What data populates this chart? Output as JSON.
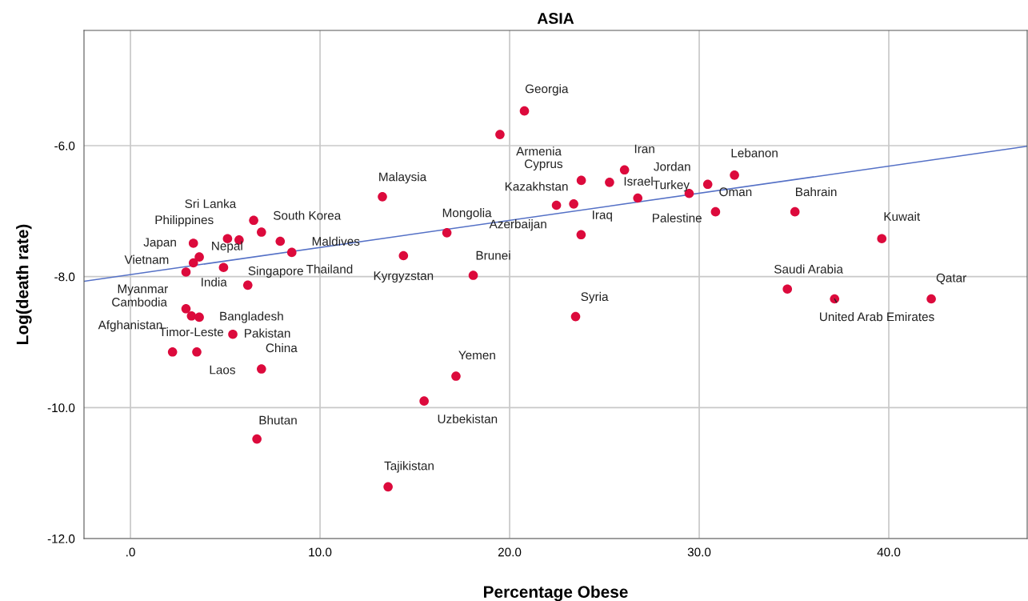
{
  "chart_data": {
    "type": "scatter",
    "title": "ASIA",
    "xlabel": "Percentage Obese",
    "ylabel": "Log(death rate)",
    "xlim": [
      -2.45,
      47.3
    ],
    "ylim": [
      -12.0,
      -4.24
    ],
    "xticks": [
      {
        "value": 0,
        "label": ".0"
      },
      {
        "value": 10,
        "label": "10.0"
      },
      {
        "value": 20,
        "label": "20.0"
      },
      {
        "value": 30,
        "label": "30.0"
      },
      {
        "value": 40,
        "label": "40.0"
      }
    ],
    "yticks": [
      {
        "value": -12,
        "label": "-12.0"
      },
      {
        "value": -10,
        "label": "-10.0"
      },
      {
        "value": -8,
        "label": "-8.0"
      },
      {
        "value": -6,
        "label": "-6.0"
      }
    ],
    "grid": true,
    "legend": false,
    "series": [
      {
        "marker": "circle",
        "color": "#dc0a3c",
        "x": [
          20.78,
          19.49,
          26.06,
          23.78,
          25.27,
          31.86,
          30.45,
          29.47,
          26.76,
          30.86,
          35.05,
          13.29,
          22.47,
          23.38,
          16.69,
          23.77,
          14.4,
          18.08,
          23.48,
          34.65,
          39.63,
          37.14,
          42.24,
          5.73,
          5.12,
          6.5,
          6.91,
          3.32,
          3.63,
          3.32,
          2.93,
          6.19,
          4.91,
          7.9,
          8.51,
          2.93,
          3.22,
          3.63,
          5.4,
          2.22,
          3.5,
          6.91,
          17.17,
          15.49,
          6.67,
          13.59
        ],
        "values": [
          -5.47,
          -5.83,
          -6.37,
          -6.53,
          -6.56,
          -6.45,
          -6.59,
          -6.73,
          -6.8,
          -7.01,
          -7.01,
          -6.78,
          -6.91,
          -6.89,
          -7.33,
          -7.36,
          -7.68,
          -7.98,
          -8.61,
          -8.19,
          -7.42,
          -8.34,
          -8.34,
          -7.44,
          -7.42,
          -7.14,
          -7.32,
          -7.49,
          -7.7,
          -7.79,
          -7.93,
          -8.13,
          -7.86,
          -7.46,
          -7.63,
          -8.49,
          -8.6,
          -8.62,
          -8.88,
          -9.15,
          -9.15,
          -9.41,
          -9.52,
          -9.9,
          -10.48,
          -11.21
        ]
      },
      {
        "type": "line",
        "color": "#5470c6",
        "x": [
          -2.45,
          47.3
        ],
        "values": [
          -8.07,
          -6.01
        ]
      }
    ],
    "annotations": [
      {
        "text": "Georgia",
        "x": 20.78,
        "y": -5.47
      },
      {
        "text": "Armenia",
        "x": 19.49,
        "y": -5.83
      },
      {
        "text": "Iran",
        "x": 26.06,
        "y": -6.37
      },
      {
        "text": "Cyprus",
        "x": 23.78,
        "y": -6.53
      },
      {
        "text": "Israel",
        "x": 25.27,
        "y": -6.56
      },
      {
        "text": "Lebanon",
        "x": 31.86,
        "y": -6.45
      },
      {
        "text": "Jordan",
        "x": 30.45,
        "y": -6.59
      },
      {
        "text": "Palestine",
        "x": 29.47,
        "y": -6.73
      },
      {
        "text": "Turkey",
        "x": 26.76,
        "y": -6.8
      },
      {
        "text": "Oman",
        "x": 30.86,
        "y": -7.01
      },
      {
        "text": "Bahrain",
        "x": 35.05,
        "y": -7.01
      },
      {
        "text": "Malaysia",
        "x": 13.29,
        "y": -6.78
      },
      {
        "text": "Kazakhstan",
        "x": 22.47,
        "y": -6.91
      },
      {
        "text": "Azerbaijan",
        "x": 23.38,
        "y": -6.89
      },
      {
        "text": "Mongolia",
        "x": 16.69,
        "y": -7.33
      },
      {
        "text": "Iraq",
        "x": 23.77,
        "y": -7.36
      },
      {
        "text": "Kyrgyzstan",
        "x": 14.4,
        "y": -7.68
      },
      {
        "text": "Brunei",
        "x": 18.08,
        "y": -7.98
      },
      {
        "text": "Syria",
        "x": 23.48,
        "y": -8.61
      },
      {
        "text": "Saudi Arabia",
        "x": 34.65,
        "y": -8.19
      },
      {
        "text": "Kuwait",
        "x": 39.63,
        "y": -7.42
      },
      {
        "text": "United Arab Emirates",
        "x": 37.14,
        "y": -8.34
      },
      {
        "text": "Qatar",
        "x": 42.24,
        "y": -8.34
      },
      {
        "text": "Sri Lanka",
        "x": 6.5,
        "y": -7.14
      },
      {
        "text": "Philippines",
        "x": 5.12,
        "y": -7.42
      },
      {
        "text": "South Korea",
        "x": 6.91,
        "y": -7.32
      },
      {
        "text": "Japan",
        "x": 3.32,
        "y": -7.49
      },
      {
        "text": "Nepal",
        "x": 3.63,
        "y": -7.7
      },
      {
        "text": "Vietnam",
        "x": 3.32,
        "y": -7.79
      },
      {
        "text": "Myanmar",
        "x": 2.93,
        "y": -7.93
      },
      {
        "text": "India",
        "x": 2.93,
        "y": -7.93
      },
      {
        "text": "Singapore",
        "x": 4.91,
        "y": -7.86
      },
      {
        "text": "Maldives",
        "x": 7.9,
        "y": -7.46
      },
      {
        "text": "Thailand",
        "x": 8.51,
        "y": -7.63
      },
      {
        "text": "Cambodia",
        "x": 2.93,
        "y": -8.49
      },
      {
        "text": "Afghanistan",
        "x": 3.22,
        "y": -8.6
      },
      {
        "text": "Bangladesh",
        "x": 3.63,
        "y": -8.62
      },
      {
        "text": "Pakistan",
        "x": 5.4,
        "y": -8.88
      },
      {
        "text": "Timor-Leste",
        "x": 2.22,
        "y": -9.15
      },
      {
        "text": "Laos",
        "x": 3.5,
        "y": -9.15
      },
      {
        "text": "China",
        "x": 6.91,
        "y": -9.41
      },
      {
        "text": "Yemen",
        "x": 17.17,
        "y": -9.52
      },
      {
        "text": "Uzbekistan",
        "x": 15.49,
        "y": -9.9
      },
      {
        "text": "Bhutan",
        "x": 6.67,
        "y": -10.48
      },
      {
        "text": "Tajikistan",
        "x": 13.59,
        "y": -11.21
      }
    ]
  }
}
